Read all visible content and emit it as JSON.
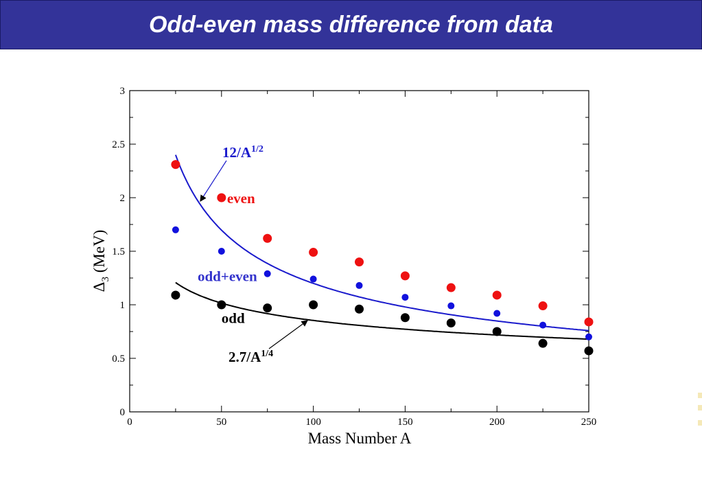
{
  "slide": {
    "title": "Odd-even mass difference from data"
  },
  "chart_data": {
    "type": "scatter",
    "xlabel": "Mass Number A",
    "ylabel": "Δ3 (MeV)",
    "ylabel_main": "Δ",
    "ylabel_sub": "3",
    "ylabel_rest": " (MeV)",
    "xlim": [
      0,
      250
    ],
    "ylim": [
      0,
      3
    ],
    "x_ticks": [
      0,
      50,
      100,
      150,
      200,
      250
    ],
    "y_ticks": [
      0,
      0.5,
      1,
      1.5,
      2,
      2.5,
      3
    ],
    "y_tick_labels": [
      "0",
      "0.5",
      "1",
      "1.5",
      "2",
      "2.5",
      "3"
    ],
    "grid": false,
    "series": [
      {
        "name": "even",
        "color": "#ee1111",
        "x": [
          25,
          50,
          75,
          100,
          125,
          150,
          175,
          200,
          225,
          250
        ],
        "y": [
          2.31,
          2.0,
          1.62,
          1.49,
          1.4,
          1.27,
          1.16,
          1.09,
          0.99,
          0.84
        ]
      },
      {
        "name": "odd+even",
        "color": "#1111dd",
        "x": [
          25,
          50,
          75,
          100,
          125,
          150,
          175,
          200,
          225,
          250
        ],
        "y": [
          1.7,
          1.5,
          1.29,
          1.24,
          1.18,
          1.07,
          0.99,
          0.92,
          0.81,
          0.7
        ]
      },
      {
        "name": "odd",
        "color": "#000000",
        "x": [
          25,
          50,
          75,
          100,
          125,
          150,
          175,
          200,
          225,
          250
        ],
        "y": [
          1.09,
          1.0,
          0.97,
          1.0,
          0.96,
          0.88,
          0.83,
          0.75,
          0.64,
          0.57
        ]
      }
    ],
    "curves": [
      {
        "label_main": "12/A",
        "label_sup": "1/2",
        "coefficient": 12,
        "exponent": 0.5,
        "color": "#1a1acc",
        "x_range": [
          25,
          250
        ]
      },
      {
        "label_main": "2.7/A",
        "label_sup": "1/4",
        "coefficient": 2.7,
        "exponent": 0.25,
        "color": "#000000",
        "x_range": [
          25,
          250
        ]
      }
    ],
    "annotations": [
      {
        "text": "even",
        "color": "#ee1111",
        "x": 53,
        "y": 1.95
      },
      {
        "text": "odd+even",
        "color": "#3333cc",
        "x": 37,
        "y": 1.22
      },
      {
        "text": "odd",
        "color": "#000000",
        "x": 50,
        "y": 0.83
      }
    ]
  }
}
